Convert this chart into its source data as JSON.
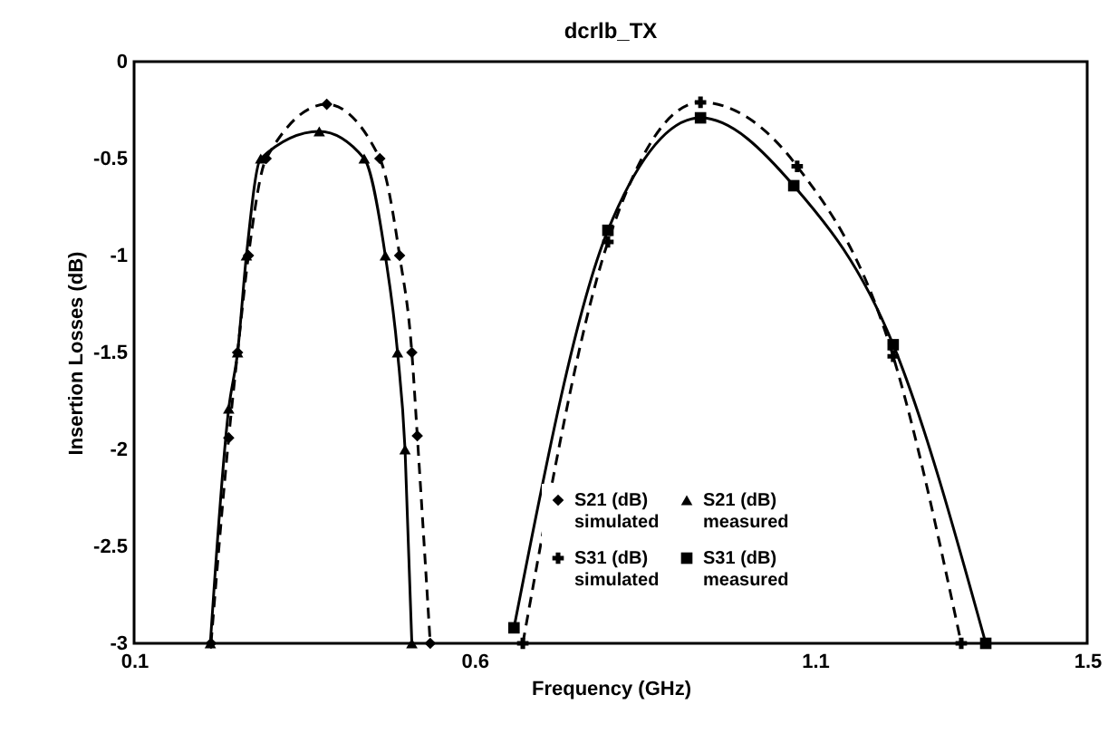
{
  "chart_data": {
    "type": "line",
    "title": "dcrlb_TX",
    "xlabel": "Frequency (GHz)",
    "ylabel": "Insertion Losses (dB)",
    "xlim": [
      0.1,
      1.5
    ],
    "xticks": [
      0.1,
      0.6,
      1.1,
      1.5
    ],
    "ylim": [
      -3,
      0
    ],
    "yticks": [
      0,
      -0.5,
      -1,
      -1.5,
      -2,
      -2.5,
      -3
    ],
    "grid": false,
    "legend": "bottom",
    "series": [
      {
        "name": "S21 (dB) simulated",
        "color": "#000000",
        "marker": "diamond",
        "line_style": "dashed",
        "x": [
          0.213,
          0.239,
          0.252,
          0.268,
          0.294,
          0.383,
          0.461,
          0.49,
          0.508,
          0.516,
          0.535
        ],
        "values": [
          -3,
          -1.94,
          -1.5,
          -1,
          -0.5,
          -0.22,
          -0.5,
          -1,
          -1.5,
          -1.93,
          -3
        ]
      },
      {
        "name": "S21 (dB) measured",
        "color": "#000000",
        "marker": "triangle",
        "line_style": "solid",
        "x": [
          0.212,
          0.239,
          0.252,
          0.265,
          0.286,
          0.372,
          0.438,
          0.469,
          0.487,
          0.498,
          0.508
        ],
        "values": [
          -3,
          -1.79,
          -1.5,
          -1,
          -0.5,
          -0.36,
          -0.5,
          -1,
          -1.5,
          -2,
          -3
        ]
      },
      {
        "name": "S31 (dB) simulated",
        "color": "#000000",
        "marker": "cross",
        "line_style": "dashed",
        "x": [
          0.671,
          0.796,
          0.932,
          1.074,
          1.215,
          1.315
        ],
        "values": [
          -3,
          -0.93,
          -0.21,
          -0.54,
          -1.52,
          -3
        ]
      },
      {
        "name": "S31 (dB) measured",
        "color": "#000000",
        "marker": "square",
        "line_style": "solid",
        "x": [
          0.658,
          0.796,
          0.932,
          1.069,
          1.215,
          1.351
        ],
        "values": [
          -2.92,
          -0.87,
          -0.29,
          -0.64,
          -1.46,
          -3
        ]
      }
    ]
  }
}
